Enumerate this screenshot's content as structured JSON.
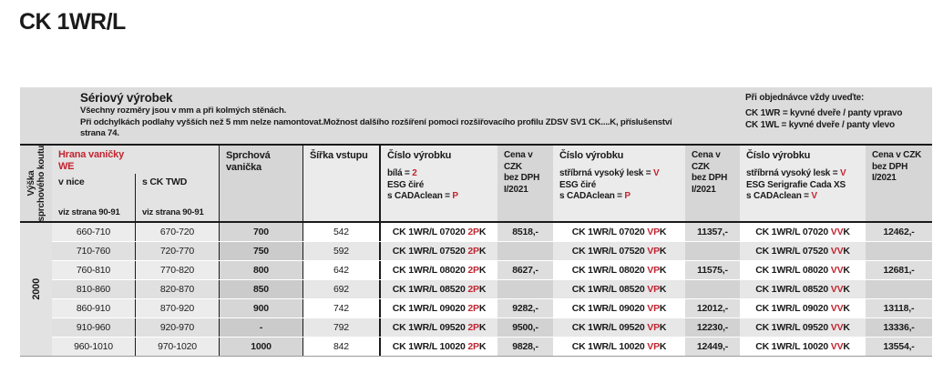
{
  "page_title": "CK 1WR/L",
  "colors": {
    "accent_red": "#c22531",
    "band_gray": "#dcdcdc"
  },
  "intro": {
    "title": "Sériový výrobek",
    "lines": [
      "Všechny rozměry jsou v mm a při kolmých stěnách.",
      "Při odchylkách podlahy vyšších než 5 mm nelze namontovat.Možnost dalšího rozšíření pomoci rozšiřovacího profilu ZDSV SV1 CK....K, příslušenství",
      "strana 74."
    ],
    "order": {
      "title": "Při objednávce vždy uveďte:",
      "lines": [
        "CK 1WR = kyvné dveře / panty vpravo",
        "CK 1WL = kyvné dveře / panty vlevo"
      ]
    }
  },
  "table": {
    "header": {
      "height_lines": [
        "Výška",
        "sprchového koutu"
      ],
      "edge": {
        "title": "Hrana vaničky",
        "code": "WE",
        "sub1": "v nice",
        "sub2": "s CK TWD",
        "ref": "viz strana 90-91"
      },
      "tray": "Sprchová vanička",
      "width": "Šířka vstupu",
      "price_header": [
        "Cena v CZK",
        "bez DPH",
        "I/2021"
      ],
      "products": [
        {
          "title": "Číslo výrobku",
          "specs": [
            {
              "t": "bílá = ",
              "r": "2"
            },
            {
              "t": "ESG čiré",
              "r": ""
            },
            {
              "t": "s CADAclean = ",
              "r": "P"
            }
          ]
        },
        {
          "title": "Číslo výrobku",
          "specs": [
            {
              "t": "stříbrná vysoký lesk = ",
              "r": "V"
            },
            {
              "t": "ESG čiré",
              "r": ""
            },
            {
              "t": "s CADAclean = ",
              "r": "P"
            }
          ]
        },
        {
          "title": "Číslo výrobku",
          "specs": [
            {
              "t": "stříbrná vysoký lesk = ",
              "r": "V"
            },
            {
              "t": "ESG Serigrafie Cada XS",
              "r": ""
            },
            {
              "t": "s CADAclean = ",
              "r": "V"
            }
          ]
        }
      ]
    },
    "height_value": "2000",
    "rows": [
      {
        "nice": "660-710",
        "twd": "670-720",
        "tray": "700",
        "width": "542",
        "codes": [
          {
            "base": "CK 1WR/L 07020 ",
            "red": "2P",
            "suffix": "K"
          },
          {
            "base": "CK 1WR/L 07020 ",
            "red": "VP",
            "suffix": "K"
          },
          {
            "base": "CK 1WR/L 07020 ",
            "red": "VV",
            "suffix": "K"
          }
        ],
        "prices": [
          "8518,-",
          "11357,-",
          "12462,-"
        ]
      },
      {
        "nice": "710-760",
        "twd": "720-770",
        "tray": "750",
        "width": "592",
        "codes": [
          {
            "base": "CK 1WR/L 07520 ",
            "red": "2P",
            "suffix": "K"
          },
          {
            "base": "CK 1WR/L 07520 ",
            "red": "VP",
            "suffix": "K"
          },
          {
            "base": "CK 1WR/L 07520 ",
            "red": "VV",
            "suffix": "K"
          }
        ],
        "prices": [
          "",
          "",
          ""
        ]
      },
      {
        "nice": "760-810",
        "twd": "770-820",
        "tray": "800",
        "width": "642",
        "codes": [
          {
            "base": "CK 1WR/L 08020 ",
            "red": "2P",
            "suffix": "K"
          },
          {
            "base": "CK 1WR/L 08020 ",
            "red": "VP",
            "suffix": "K"
          },
          {
            "base": "CK 1WR/L 08020 ",
            "red": "VV",
            "suffix": "K"
          }
        ],
        "prices": [
          "8627,-",
          "11575,-",
          "12681,-"
        ]
      },
      {
        "nice": "810-860",
        "twd": "820-870",
        "tray": "850",
        "width": "692",
        "codes": [
          {
            "base": "CK 1WR/L 08520 ",
            "red": "2P",
            "suffix": "K"
          },
          {
            "base": "CK 1WR/L 08520 ",
            "red": "VP",
            "suffix": "K"
          },
          {
            "base": "CK 1WR/L 08520 ",
            "red": "VV",
            "suffix": "K"
          }
        ],
        "prices": [
          "",
          "",
          ""
        ]
      },
      {
        "nice": "860-910",
        "twd": "870-920",
        "tray": "900",
        "width": "742",
        "codes": [
          {
            "base": "CK 1WR/L 09020 ",
            "red": "2P",
            "suffix": "K"
          },
          {
            "base": "CK 1WR/L 09020 ",
            "red": "VP",
            "suffix": "K"
          },
          {
            "base": "CK 1WR/L 09020 ",
            "red": "VV",
            "suffix": "K"
          }
        ],
        "prices": [
          "9282,-",
          "12012,-",
          "13118,-"
        ]
      },
      {
        "nice": "910-960",
        "twd": "920-970",
        "tray": "-",
        "width": "792",
        "codes": [
          {
            "base": "CK 1WR/L 09520 ",
            "red": "2P",
            "suffix": "K"
          },
          {
            "base": "CK 1WR/L 09520 ",
            "red": "VP",
            "suffix": "K"
          },
          {
            "base": "CK 1WR/L 09520 ",
            "red": "VV",
            "suffix": "K"
          }
        ],
        "prices": [
          "9500,-",
          "12230,-",
          "13336,-"
        ]
      },
      {
        "nice": "960-1010",
        "twd": "970-1020",
        "tray": "1000",
        "width": "842",
        "codes": [
          {
            "base": "CK 1WR/L 10020 ",
            "red": "2P",
            "suffix": "K"
          },
          {
            "base": "CK 1WR/L 10020 ",
            "red": "VP",
            "suffix": "K"
          },
          {
            "base": "CK 1WR/L 10020 ",
            "red": "VV",
            "suffix": "K"
          }
        ],
        "prices": [
          "9828,-",
          "12449,-",
          "13554,-"
        ]
      }
    ]
  }
}
